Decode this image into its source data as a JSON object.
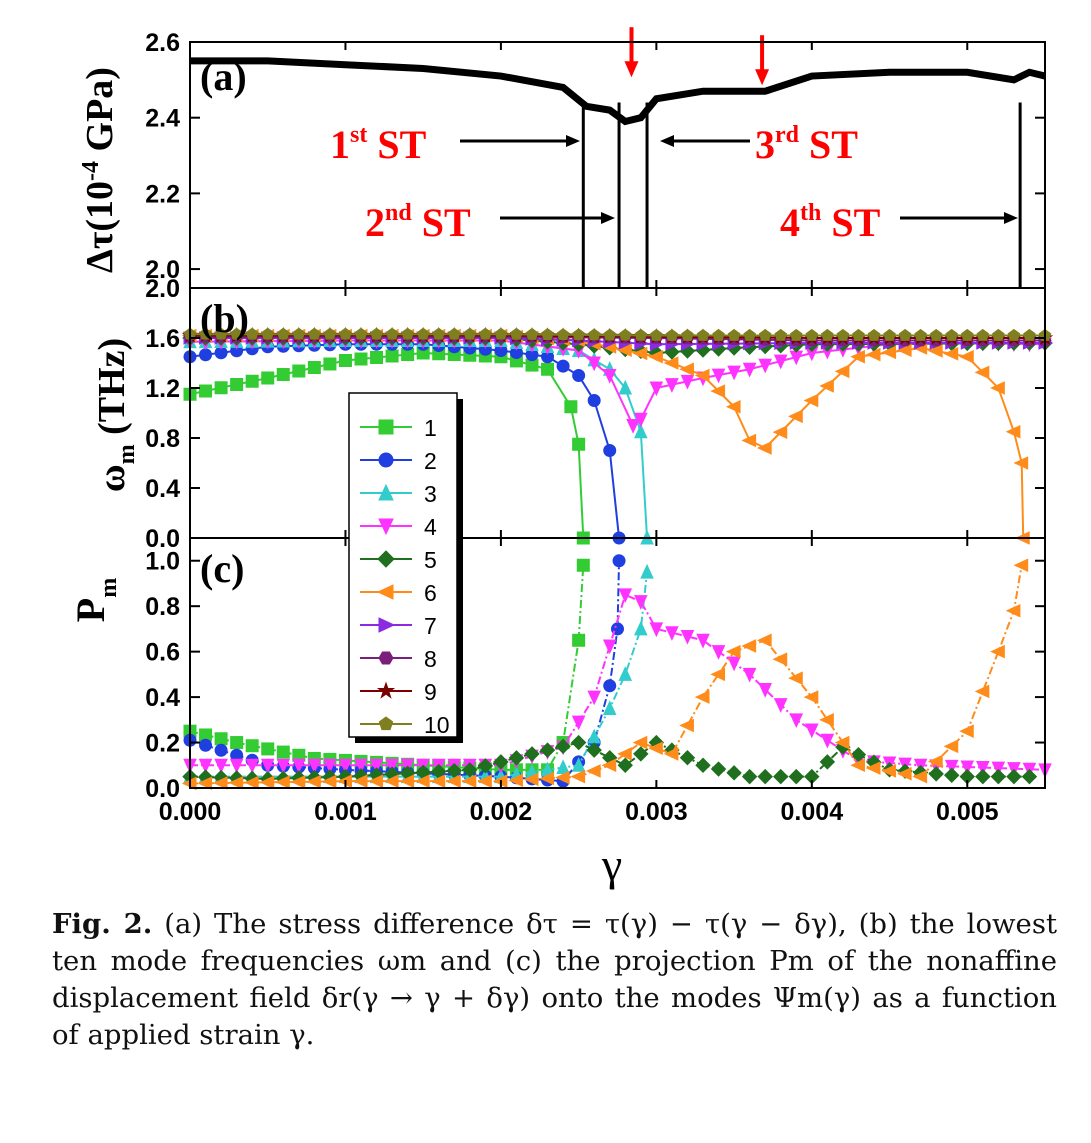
{
  "figure": {
    "panel_labels": [
      "(a)",
      "(b)",
      "(c)"
    ],
    "xlabel": "γ",
    "x_ticks": [
      "0.000",
      "0.001",
      "0.002",
      "0.003",
      "0.004",
      "0.005"
    ],
    "annotations": [
      {
        "pre": "1",
        "sup": "st",
        "post": " ST"
      },
      {
        "pre": "2",
        "sup": "nd",
        "post": " ST"
      },
      {
        "pre": "3",
        "sup": "rd",
        "post": " ST"
      },
      {
        "pre": "4",
        "sup": "th",
        "post": " ST"
      }
    ],
    "legend": [
      "1",
      "2",
      "3",
      "4",
      "5",
      "6",
      "7",
      "8",
      "9",
      "10"
    ],
    "colors": {
      "annotation": "#ff0000",
      "mode_1": "#33cc33",
      "mode_2": "#1f3fe0",
      "mode_3": "#33cccc",
      "mode_4": "#ff33ff",
      "mode_5": "#1f6f1f",
      "mode_6": "#ff8c1a",
      "mode_7": "#8a2be2",
      "mode_8": "#7a1f7a",
      "mode_9": "#7a0000",
      "mode_10": "#7f7f1f"
    }
  },
  "chart_data": [
    {
      "panel": "(a)",
      "type": "line",
      "ylabel": "Δτ(10⁻⁴ GPa)",
      "ylim": [
        1.95,
        2.6
      ],
      "y_ticks": [
        "2.0",
        "2.2",
        "2.4",
        "2.6"
      ],
      "xlim": [
        0,
        0.0055
      ],
      "x": [
        0,
        0.0005,
        0.001,
        0.0015,
        0.002,
        0.0024,
        0.00255,
        0.0027,
        0.0028,
        0.0029,
        0.003,
        0.0033,
        0.0036,
        0.0037,
        0.004,
        0.0045,
        0.005,
        0.0053,
        0.0054,
        0.0055
      ],
      "y": [
        2.55,
        2.55,
        2.54,
        2.53,
        2.51,
        2.48,
        2.43,
        2.42,
        2.39,
        2.4,
        2.45,
        2.47,
        2.47,
        2.47,
        2.51,
        2.52,
        2.52,
        2.5,
        2.52,
        2.51
      ],
      "drops": [
        0.00253,
        0.00276,
        0.00294,
        0.00534
      ],
      "arrows_at": [
        0.00284,
        0.00368
      ]
    },
    {
      "panel": "(b)",
      "type": "line",
      "ylabel": "ωm (THz)",
      "ylim": [
        0,
        2.0
      ],
      "y_ticks": [
        "0.0",
        "0.4",
        "0.8",
        "1.2",
        "1.6",
        "2.0"
      ],
      "series": [
        {
          "name": "1",
          "x": [
            0,
            0.0005,
            0.001,
            0.0015,
            0.002,
            0.0023,
            0.00245,
            0.0025,
            0.00253
          ],
          "y": [
            1.15,
            1.28,
            1.42,
            1.48,
            1.45,
            1.35,
            1.05,
            0.75,
            0
          ]
        },
        {
          "name": "2",
          "x": [
            0,
            0.0005,
            0.001,
            0.0015,
            0.002,
            0.0023,
            0.0025,
            0.0026,
            0.0027,
            0.00276
          ],
          "y": [
            1.45,
            1.53,
            1.55,
            1.55,
            1.5,
            1.45,
            1.3,
            1.1,
            0.7,
            0
          ]
        },
        {
          "name": "3",
          "x": [
            0,
            0.001,
            0.002,
            0.0025,
            0.0027,
            0.0028,
            0.0029,
            0.00294
          ],
          "y": [
            1.57,
            1.58,
            1.58,
            1.5,
            1.35,
            1.2,
            0.85,
            0
          ]
        },
        {
          "name": "4",
          "x": [
            0,
            0.001,
            0.002,
            0.0025,
            0.0027,
            0.00285,
            0.0029,
            0.003,
            0.0033,
            0.0036,
            0.004,
            0.0045,
            0.005,
            0.0055
          ],
          "y": [
            1.57,
            1.58,
            1.58,
            1.5,
            1.3,
            0.9,
            0.95,
            1.2,
            1.28,
            1.35,
            1.48,
            1.55,
            1.56,
            1.55
          ]
        },
        {
          "name": "5",
          "x": [
            0,
            0.001,
            0.002,
            0.0025,
            0.003,
            0.0035,
            0.004,
            0.0055
          ],
          "y": [
            1.6,
            1.6,
            1.6,
            1.55,
            1.48,
            1.52,
            1.55,
            1.56
          ]
        },
        {
          "name": "6",
          "x": [
            0,
            0.001,
            0.002,
            0.0025,
            0.003,
            0.0033,
            0.0035,
            0.0036,
            0.0037,
            0.004,
            0.0043,
            0.0047,
            0.005,
            0.0052,
            0.0053,
            0.00535,
            0.00536
          ],
          "y": [
            1.62,
            1.62,
            1.62,
            1.58,
            1.45,
            1.3,
            1.05,
            0.78,
            0.72,
            1.1,
            1.45,
            1.52,
            1.45,
            1.2,
            0.85,
            0.6,
            0
          ]
        },
        {
          "name": "7",
          "x": [
            0,
            0.001,
            0.002,
            0.0025,
            0.003,
            0.004,
            0.005,
            0.0055
          ],
          "y": [
            1.6,
            1.6,
            1.6,
            1.58,
            1.55,
            1.56,
            1.56,
            1.56
          ]
        },
        {
          "name": "8",
          "x": [
            0,
            0.001,
            0.002,
            0.003,
            0.004,
            0.005,
            0.0055
          ],
          "y": [
            1.61,
            1.61,
            1.61,
            1.6,
            1.58,
            1.58,
            1.58
          ]
        },
        {
          "name": "9",
          "x": [
            0,
            0.001,
            0.002,
            0.003,
            0.004,
            0.005,
            0.0055
          ],
          "y": [
            1.62,
            1.62,
            1.62,
            1.61,
            1.6,
            1.6,
            1.6
          ]
        },
        {
          "name": "10",
          "x": [
            0,
            0.001,
            0.002,
            0.003,
            0.004,
            0.005,
            0.0055
          ],
          "y": [
            1.63,
            1.63,
            1.63,
            1.62,
            1.62,
            1.62,
            1.62
          ]
        }
      ]
    },
    {
      "panel": "(c)",
      "type": "line",
      "ylabel": "Pm",
      "ylim": [
        0,
        1.1
      ],
      "y_ticks": [
        "0.0",
        "0.2",
        "0.4",
        "0.6",
        "0.8",
        "1.0"
      ],
      "series": [
        {
          "name": "1",
          "x": [
            0,
            0.0003,
            0.0008,
            0.0015,
            0.002,
            0.0023,
            0.0024,
            0.0025,
            0.00253
          ],
          "y": [
            0.25,
            0.2,
            0.13,
            0.1,
            0.08,
            0.08,
            0.2,
            0.65,
            0.98
          ]
        },
        {
          "name": "2",
          "x": [
            0,
            0.0005,
            0.001,
            0.002,
            0.0024,
            0.0026,
            0.0027,
            0.00275,
            0.00276
          ],
          "y": [
            0.21,
            0.1,
            0.08,
            0.05,
            0.03,
            0.2,
            0.45,
            0.7,
            1.0
          ]
        },
        {
          "name": "3",
          "x": [
            0,
            0.001,
            0.002,
            0.0025,
            0.0027,
            0.0028,
            0.0029,
            0.00294
          ],
          "y": [
            0.05,
            0.05,
            0.05,
            0.1,
            0.35,
            0.5,
            0.7,
            0.95
          ]
        },
        {
          "name": "4",
          "x": [
            0,
            0.001,
            0.002,
            0.0024,
            0.0026,
            0.0028,
            0.0029,
            0.003,
            0.0033,
            0.0036,
            0.0039,
            0.0043,
            0.0047,
            0.0055
          ],
          "y": [
            0.1,
            0.1,
            0.1,
            0.18,
            0.4,
            0.85,
            0.82,
            0.7,
            0.65,
            0.5,
            0.3,
            0.12,
            0.1,
            0.08
          ]
        },
        {
          "name": "5",
          "x": [
            0,
            0.0005,
            0.001,
            0.0018,
            0.0022,
            0.0025,
            0.0028,
            0.003,
            0.0033,
            0.0036,
            0.004,
            0.0042,
            0.0045,
            0.005,
            0.0054
          ],
          "y": [
            0.05,
            0.04,
            0.05,
            0.08,
            0.15,
            0.2,
            0.1,
            0.2,
            0.1,
            0.05,
            0.05,
            0.18,
            0.08,
            0.05,
            0.05
          ]
        },
        {
          "name": "6",
          "x": [
            0,
            0.001,
            0.002,
            0.0025,
            0.0027,
            0.0029,
            0.0031,
            0.0033,
            0.0035,
            0.0037,
            0.004,
            0.0043,
            0.0047,
            0.005,
            0.0052,
            0.0053,
            0.00535
          ],
          "y": [
            0.02,
            0.03,
            0.03,
            0.05,
            0.1,
            0.2,
            0.15,
            0.4,
            0.6,
            0.65,
            0.4,
            0.1,
            0.05,
            0.25,
            0.6,
            0.78,
            0.98
          ]
        }
      ]
    }
  ],
  "caption": {
    "label": "Fig. 2.",
    "text": "(a) The stress difference δτ = τ(γ) − τ(γ − δγ), (b) the lowest ten mode frequencies ωm and (c) the projection Pm of the nonaffine displacement field δr(γ → γ + δγ) onto the modes Ψm(γ) as a function of applied strain γ."
  }
}
